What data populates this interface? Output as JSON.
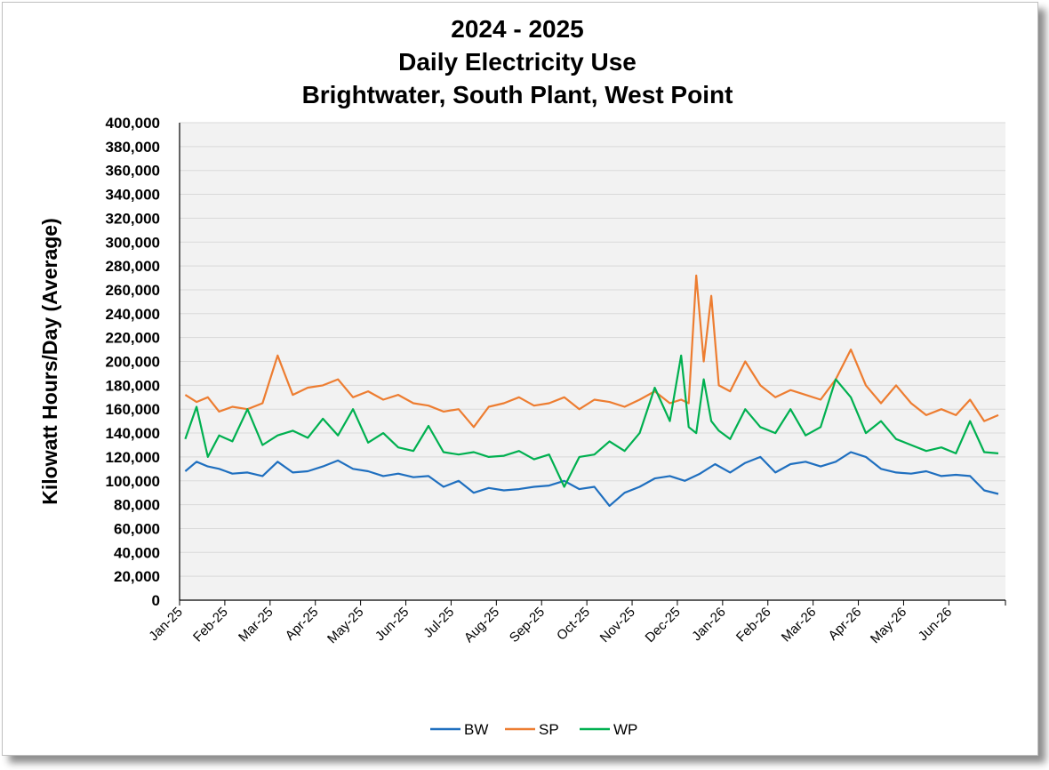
{
  "chart_data": {
    "type": "line",
    "title": [
      "2024 - 2025",
      "Daily Electricity Use",
      "Brightwater, South Plant, West Point"
    ],
    "xlabel": "",
    "ylabel": "Kilowatt Hours/Day (Average)",
    "ylim": [
      0,
      400000
    ],
    "yticks": [
      "0",
      "20,000",
      "40,000",
      "60,000",
      "80,000",
      "100,000",
      "120,000",
      "140,000",
      "160,000",
      "180,000",
      "200,000",
      "220,000",
      "240,000",
      "260,000",
      "280,000",
      "300,000",
      "320,000",
      "340,000",
      "360,000",
      "380,000",
      "400,000"
    ],
    "xticks": [
      "Jan-25",
      "Feb-25",
      "Mar-25",
      "Apr-25",
      "May-25",
      "Jun-25",
      "Jul-25",
      "Aug-25",
      "Sep-25",
      "Oct-25",
      "Nov-25",
      "Dec-25",
      "Jan-26",
      "Feb-26",
      "Mar-26",
      "Apr-26",
      "May-26",
      "Jun-26"
    ],
    "grid": true,
    "legend_position": "bottom",
    "colors": {
      "BW": "#1F6FBF",
      "SP": "#ED7D31",
      "WP": "#00B050",
      "plot_bg": "#F2F2F2",
      "grid": "#D9D9D9"
    },
    "series": [
      {
        "name": "BW",
        "color": "#1F6FBF",
        "points": [
          [
            "Jan-25",
            108000
          ],
          [
            "Jan-25",
            116000
          ],
          [
            "Jan-25",
            112000
          ],
          [
            "Jan-25",
            110000
          ],
          [
            "Feb-25",
            106000
          ],
          [
            "Feb-25",
            107000
          ],
          [
            "Feb-25",
            104000
          ],
          [
            "Mar-25",
            116000
          ],
          [
            "Mar-25",
            107000
          ],
          [
            "Mar-25",
            108000
          ],
          [
            "Apr-25",
            112000
          ],
          [
            "Apr-25",
            117000
          ],
          [
            "Apr-25",
            110000
          ],
          [
            "May-25",
            108000
          ],
          [
            "May-25",
            104000
          ],
          [
            "May-25",
            106000
          ],
          [
            "Jun-25",
            103000
          ],
          [
            "Jun-25",
            104000
          ],
          [
            "Jun-25",
            95000
          ],
          [
            "Jul-25",
            100000
          ],
          [
            "Jul-25",
            90000
          ],
          [
            "Jul-25",
            94000
          ],
          [
            "Aug-25",
            92000
          ],
          [
            "Aug-25",
            93000
          ],
          [
            "Aug-25",
            95000
          ],
          [
            "Sep-25",
            96000
          ],
          [
            "Sep-25",
            100000
          ],
          [
            "Sep-25",
            93000
          ],
          [
            "Oct-25",
            95000
          ],
          [
            "Oct-25",
            79000
          ],
          [
            "Oct-25",
            90000
          ],
          [
            "Nov-25",
            95000
          ],
          [
            "Nov-25",
            102000
          ],
          [
            "Nov-25",
            104000
          ],
          [
            "Dec-25",
            100000
          ],
          [
            "Dec-25",
            106000
          ],
          [
            "Dec-25",
            114000
          ],
          [
            "Jan-26",
            107000
          ],
          [
            "Jan-26",
            115000
          ],
          [
            "Jan-26",
            120000
          ],
          [
            "Feb-26",
            107000
          ],
          [
            "Feb-26",
            114000
          ],
          [
            "Feb-26",
            116000
          ],
          [
            "Mar-26",
            112000
          ],
          [
            "Mar-26",
            116000
          ],
          [
            "Mar-26",
            124000
          ],
          [
            "Apr-26",
            120000
          ],
          [
            "Apr-26",
            110000
          ],
          [
            "Apr-26",
            107000
          ],
          [
            "May-26",
            106000
          ],
          [
            "May-26",
            108000
          ],
          [
            "May-26",
            104000
          ],
          [
            "Jun-26",
            105000
          ],
          [
            "Jun-26",
            104000
          ],
          [
            "Jun-26",
            92000
          ],
          [
            "Jun-26",
            89000
          ]
        ]
      },
      {
        "name": "SP",
        "color": "#ED7D31",
        "points": [
          [
            "Jan-25",
            172000
          ],
          [
            "Jan-25",
            166000
          ],
          [
            "Jan-25",
            170000
          ],
          [
            "Jan-25",
            158000
          ],
          [
            "Feb-25",
            162000
          ],
          [
            "Feb-25",
            160000
          ],
          [
            "Feb-25",
            165000
          ],
          [
            "Mar-25",
            205000
          ],
          [
            "Mar-25",
            172000
          ],
          [
            "Mar-25",
            178000
          ],
          [
            "Apr-25",
            180000
          ],
          [
            "Apr-25",
            185000
          ],
          [
            "Apr-25",
            170000
          ],
          [
            "May-25",
            175000
          ],
          [
            "May-25",
            168000
          ],
          [
            "May-25",
            172000
          ],
          [
            "Jun-25",
            165000
          ],
          [
            "Jun-25",
            163000
          ],
          [
            "Jun-25",
            158000
          ],
          [
            "Jul-25",
            160000
          ],
          [
            "Jul-25",
            145000
          ],
          [
            "Jul-25",
            162000
          ],
          [
            "Aug-25",
            165000
          ],
          [
            "Aug-25",
            170000
          ],
          [
            "Aug-25",
            163000
          ],
          [
            "Sep-25",
            165000
          ],
          [
            "Sep-25",
            170000
          ],
          [
            "Sep-25",
            160000
          ],
          [
            "Oct-25",
            168000
          ],
          [
            "Oct-25",
            166000
          ],
          [
            "Oct-25",
            162000
          ],
          [
            "Nov-25",
            168000
          ],
          [
            "Nov-25",
            175000
          ],
          [
            "Nov-25",
            165000
          ],
          [
            "Dec-25",
            168000
          ],
          [
            "Dec-25",
            165000
          ],
          [
            "Dec-25",
            272000
          ],
          [
            "Dec-25",
            200000
          ],
          [
            "Dec-25",
            255000
          ],
          [
            "Dec-25",
            180000
          ],
          [
            "Jan-26",
            175000
          ],
          [
            "Jan-26",
            200000
          ],
          [
            "Jan-26",
            180000
          ],
          [
            "Feb-26",
            170000
          ],
          [
            "Feb-26",
            176000
          ],
          [
            "Feb-26",
            172000
          ],
          [
            "Mar-26",
            168000
          ],
          [
            "Mar-26",
            185000
          ],
          [
            "Mar-26",
            210000
          ],
          [
            "Apr-26",
            180000
          ],
          [
            "Apr-26",
            165000
          ],
          [
            "Apr-26",
            180000
          ],
          [
            "May-26",
            165000
          ],
          [
            "May-26",
            155000
          ],
          [
            "May-26",
            160000
          ],
          [
            "Jun-26",
            155000
          ],
          [
            "Jun-26",
            168000
          ],
          [
            "Jun-26",
            150000
          ],
          [
            "Jun-26",
            155000
          ]
        ]
      },
      {
        "name": "WP",
        "color": "#00B050",
        "points": [
          [
            "Jan-25",
            135000
          ],
          [
            "Jan-25",
            162000
          ],
          [
            "Jan-25",
            120000
          ],
          [
            "Jan-25",
            138000
          ],
          [
            "Feb-25",
            133000
          ],
          [
            "Feb-25",
            160000
          ],
          [
            "Feb-25",
            130000
          ],
          [
            "Mar-25",
            138000
          ],
          [
            "Mar-25",
            142000
          ],
          [
            "Mar-25",
            136000
          ],
          [
            "Apr-25",
            152000
          ],
          [
            "Apr-25",
            138000
          ],
          [
            "Apr-25",
            160000
          ],
          [
            "May-25",
            132000
          ],
          [
            "May-25",
            140000
          ],
          [
            "May-25",
            128000
          ],
          [
            "Jun-25",
            125000
          ],
          [
            "Jun-25",
            146000
          ],
          [
            "Jun-25",
            124000
          ],
          [
            "Jul-25",
            122000
          ],
          [
            "Jul-25",
            124000
          ],
          [
            "Jul-25",
            120000
          ],
          [
            "Aug-25",
            121000
          ],
          [
            "Aug-25",
            125000
          ],
          [
            "Aug-25",
            118000
          ],
          [
            "Sep-25",
            122000
          ],
          [
            "Sep-25",
            95000
          ],
          [
            "Sep-25",
            120000
          ],
          [
            "Oct-25",
            122000
          ],
          [
            "Oct-25",
            133000
          ],
          [
            "Oct-25",
            125000
          ],
          [
            "Nov-25",
            140000
          ],
          [
            "Nov-25",
            178000
          ],
          [
            "Nov-25",
            150000
          ],
          [
            "Dec-25",
            205000
          ],
          [
            "Dec-25",
            145000
          ],
          [
            "Dec-25",
            140000
          ],
          [
            "Dec-25",
            185000
          ],
          [
            "Dec-25",
            150000
          ],
          [
            "Dec-25",
            142000
          ],
          [
            "Jan-26",
            135000
          ],
          [
            "Jan-26",
            160000
          ],
          [
            "Jan-26",
            145000
          ],
          [
            "Feb-26",
            140000
          ],
          [
            "Feb-26",
            160000
          ],
          [
            "Feb-26",
            138000
          ],
          [
            "Mar-26",
            145000
          ],
          [
            "Mar-26",
            185000
          ],
          [
            "Mar-26",
            170000
          ],
          [
            "Apr-26",
            140000
          ],
          [
            "Apr-26",
            150000
          ],
          [
            "Apr-26",
            135000
          ],
          [
            "May-26",
            130000
          ],
          [
            "May-26",
            125000
          ],
          [
            "May-26",
            128000
          ],
          [
            "Jun-26",
            123000
          ],
          [
            "Jun-26",
            150000
          ],
          [
            "Jun-26",
            124000
          ],
          [
            "Jun-26",
            123000
          ]
        ]
      }
    ]
  }
}
